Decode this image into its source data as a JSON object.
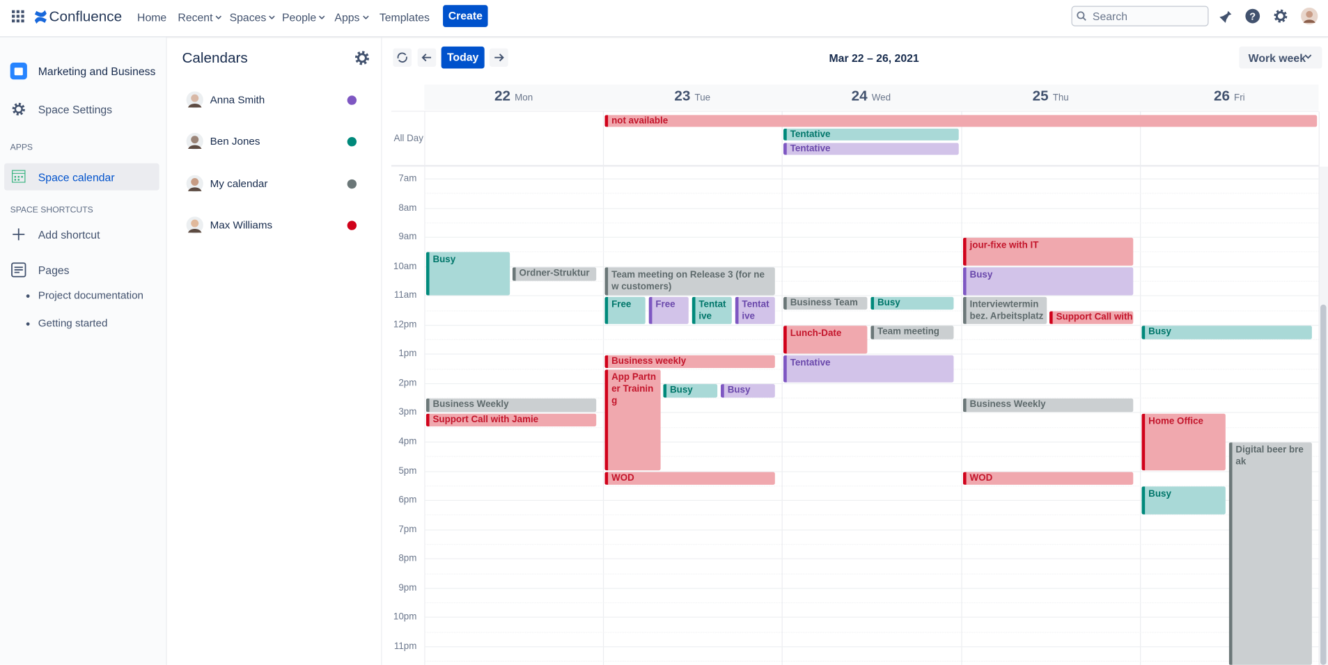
{
  "topbar": {
    "brand": "Confluence",
    "nav": [
      "Home",
      "Recent",
      "Spaces",
      "People",
      "Apps",
      "Templates"
    ],
    "create": "Create",
    "search": "Search"
  },
  "sidebar": {
    "space": "Marketing and Business",
    "settings": "Space Settings",
    "apps_heading": "APPS",
    "calendar": "Space calendar",
    "shortcuts_heading": "SPACE SHORTCUTS",
    "add_shortcut": "Add shortcut",
    "pages": "Pages",
    "page_links": [
      "Project documentation",
      "Getting started"
    ]
  },
  "calendars": {
    "title": "Calendars",
    "items": [
      "Anna Smith",
      "Ben Jones",
      "My calendar",
      "Max Williams"
    ]
  },
  "calendar": {
    "today": "Today",
    "range": "Mar 22 – 26, 2021",
    "view": "Work week",
    "days": [
      {
        "date": "22",
        "weekday": "Mon"
      },
      {
        "date": "23",
        "weekday": "Tue"
      },
      {
        "date": "24",
        "weekday": "Wed"
      },
      {
        "date": "25",
        "weekday": "Thu"
      },
      {
        "date": "26",
        "weekday": "Fri"
      }
    ],
    "all_day_label": "All Day",
    "hours": [
      "7am",
      "8am",
      "9am",
      "10am",
      "11am",
      "12pm",
      "1pm",
      "2pm",
      "3pm",
      "4pm",
      "5pm",
      "6pm",
      "7pm",
      "8pm",
      "9pm",
      "10pm",
      "11pm"
    ],
    "all_day_events": [
      "not available",
      "Tentative",
      "Tentative"
    ],
    "events": [
      "Busy",
      "Ordner-Struktur",
      "Business Weekly",
      "Support Call with Jamie",
      "Team meeting on Release 3 (for new customers)",
      "Free",
      "Free",
      "Tentative",
      "Tentative",
      "Business weekly",
      "App Partner Training",
      "Busy",
      "Busy",
      "WOD",
      "Business Team",
      "Busy",
      "Lunch-Date",
      "Team meeting",
      "Tentative",
      "jour-fixe with IT",
      "Busy",
      "Interviewtermin bez. Arbeitsplatz",
      "Support Call with",
      "Business Weekly",
      "WOD",
      "Busy",
      "Home Office",
      "Digital beer break",
      "Busy"
    ]
  }
}
